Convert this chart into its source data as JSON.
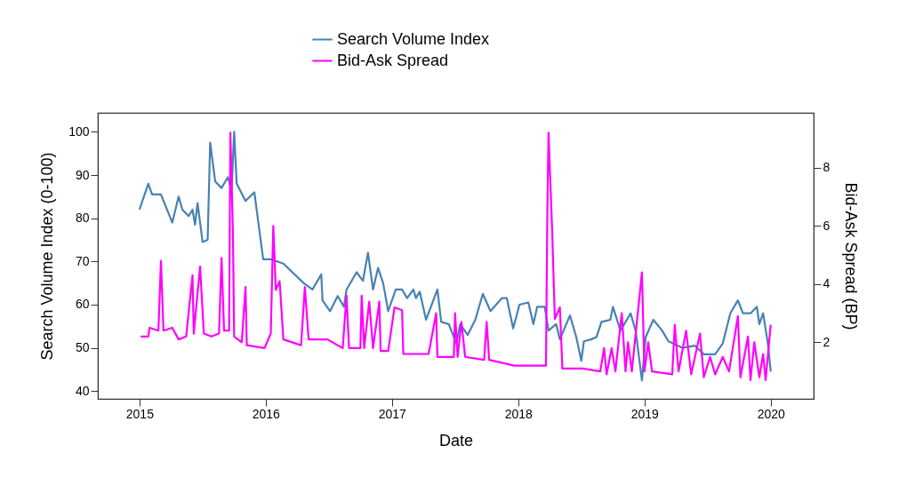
{
  "chart_data": {
    "type": "line",
    "xlabel": "Date",
    "ylabel": "Search Volume Index (0-100)",
    "y2label": "Bid-Ask Spread (BP)",
    "xlim": [
      2014.67,
      2020.34
    ],
    "xticks": [
      2015,
      2016,
      2017,
      2018,
      2019,
      2020
    ],
    "ylim": [
      38.2,
      104.4
    ],
    "yticks": [
      40,
      50,
      60,
      70,
      80,
      90,
      100
    ],
    "y2lim": [
      0.06,
      9.88
    ],
    "y2ticks": [
      2,
      4,
      6,
      8
    ],
    "grid": false,
    "legend": "top",
    "marker": "none",
    "line_style": "solid",
    "series": [
      {
        "name": "Search Volume Index",
        "color": "#4682b4",
        "x": [
          2015.0,
          2015.07,
          2015.1,
          2015.17,
          2015.26,
          2015.31,
          2015.34,
          2015.39,
          2015.42,
          2015.44,
          2015.46,
          2015.5,
          2015.54,
          2015.56,
          2015.6,
          2015.65,
          2015.7,
          2015.73,
          2015.75,
          2015.77,
          2015.84,
          2015.91,
          2015.98,
          2016.04,
          2016.14,
          2016.3,
          2016.37,
          2016.44,
          2016.45,
          2016.51,
          2016.57,
          2016.62,
          2016.64,
          2016.72,
          2016.77,
          2016.81,
          2016.85,
          2016.89,
          2016.93,
          2016.97,
          2017.03,
          2017.08,
          2017.12,
          2017.17,
          2017.19,
          2017.22,
          2017.27,
          2017.36,
          2017.39,
          2017.45,
          2017.51,
          2017.54,
          2017.6,
          2017.66,
          2017.72,
          2017.78,
          2017.87,
          2017.91,
          2017.96,
          2018.01,
          2018.08,
          2018.12,
          2018.15,
          2018.21,
          2018.24,
          2018.3,
          2018.33,
          2018.41,
          2018.46,
          2018.5,
          2018.52,
          2018.58,
          2018.62,
          2018.66,
          2018.73,
          2018.75,
          2018.81,
          2018.89,
          2018.93,
          2018.98,
          2019.01,
          2019.07,
          2019.14,
          2019.19,
          2019.23,
          2019.3,
          2019.4,
          2019.47,
          2019.56,
          2019.62,
          2019.68,
          2019.74,
          2019.78,
          2019.84,
          2019.89,
          2019.91,
          2019.94,
          2019.98,
          2020.0
        ],
        "values": [
          82,
          88,
          85.5,
          85.5,
          79,
          85,
          82,
          80.5,
          82,
          78.5,
          83.5,
          74.5,
          75,
          97.5,
          88.5,
          87,
          89.5,
          86.5,
          100,
          88,
          84,
          86,
          70.5,
          70.5,
          69.5,
          65,
          63.5,
          67,
          61,
          58.5,
          62,
          59.5,
          63.5,
          67.5,
          65.5,
          72,
          63.5,
          68.5,
          65,
          58.5,
          63.5,
          63.5,
          61.5,
          63.5,
          61.5,
          63,
          56.5,
          63.5,
          56,
          55.5,
          51,
          55.5,
          53,
          56.5,
          62.5,
          58.5,
          61.5,
          61.5,
          54.5,
          60,
          60.5,
          55.5,
          59.5,
          59.5,
          54,
          55.5,
          52,
          57.5,
          52.5,
          47,
          51.5,
          52,
          52.5,
          56,
          56.5,
          59.5,
          54,
          58,
          54,
          42.5,
          52.5,
          56.5,
          54,
          51.5,
          51,
          50,
          50.5,
          48.5,
          48.5,
          51,
          58,
          61,
          58,
          58,
          59.5,
          55.5,
          58,
          50.5,
          44.5
        ]
      },
      {
        "name": "Bid-Ask Spread",
        "color": "#ff00ff",
        "axis": "y2",
        "x": [
          2015.01,
          2015.07,
          2015.08,
          2015.15,
          2015.17,
          2015.19,
          2015.26,
          2015.31,
          2015.37,
          2015.42,
          2015.43,
          2015.48,
          2015.51,
          2015.57,
          2015.63,
          2015.65,
          2015.67,
          2015.71,
          2015.72,
          2015.74,
          2015.75,
          2015.81,
          2015.84,
          2015.85,
          2015.99,
          2016.04,
          2016.06,
          2016.08,
          2016.11,
          2016.14,
          2016.28,
          2016.31,
          2016.34,
          2016.49,
          2016.61,
          2016.64,
          2016.66,
          2016.75,
          2016.76,
          2016.78,
          2016.82,
          2016.85,
          2016.9,
          2016.91,
          2016.97,
          2017.02,
          2017.08,
          2017.09,
          2017.29,
          2017.35,
          2017.36,
          2017.49,
          2017.5,
          2017.52,
          2017.55,
          2017.58,
          2017.73,
          2017.75,
          2017.77,
          2017.97,
          2018.13,
          2018.22,
          2018.23,
          2018.24,
          2018.27,
          2018.29,
          2018.33,
          2018.35,
          2018.51,
          2018.65,
          2018.68,
          2018.7,
          2018.74,
          2018.77,
          2018.82,
          2018.85,
          2018.87,
          2018.9,
          2018.98,
          2019.0,
          2019.03,
          2019.06,
          2019.22,
          2019.24,
          2019.27,
          2019.33,
          2019.37,
          2019.44,
          2019.47,
          2019.52,
          2019.56,
          2019.62,
          2019.67,
          2019.74,
          2019.76,
          2019.82,
          2019.84,
          2019.87,
          2019.91,
          2019.94,
          2019.96,
          2020.0
        ],
        "values": [
          2.2,
          2.2,
          2.5,
          2.4,
          4.8,
          2.4,
          2.5,
          2.1,
          2.2,
          4.3,
          2.3,
          4.6,
          2.3,
          2.2,
          2.3,
          4.9,
          2.4,
          2.4,
          9.2,
          5.8,
          2.2,
          2.0,
          3.9,
          1.9,
          1.8,
          2.3,
          6.0,
          3.8,
          4.1,
          2.1,
          1.9,
          3.9,
          2.1,
          2.1,
          1.8,
          3.6,
          1.8,
          1.8,
          3.6,
          1.8,
          3.4,
          1.8,
          3.4,
          1.7,
          1.7,
          3.2,
          3.1,
          1.6,
          1.6,
          3.0,
          1.5,
          1.5,
          3.0,
          1.5,
          2.7,
          1.5,
          1.4,
          2.7,
          1.4,
          1.2,
          1.2,
          1.2,
          6.2,
          9.2,
          5.7,
          2.8,
          3.2,
          1.1,
          1.1,
          1.0,
          1.8,
          0.9,
          1.8,
          1.0,
          3.0,
          1.0,
          2.0,
          1.0,
          4.4,
          1.0,
          2.0,
          1.0,
          0.9,
          2.6,
          1.0,
          2.4,
          0.9,
          2.3,
          0.8,
          1.5,
          0.9,
          1.5,
          1.0,
          2.9,
          0.8,
          2.2,
          0.7,
          2.0,
          0.8,
          1.6,
          0.7,
          2.6
        ]
      }
    ]
  }
}
